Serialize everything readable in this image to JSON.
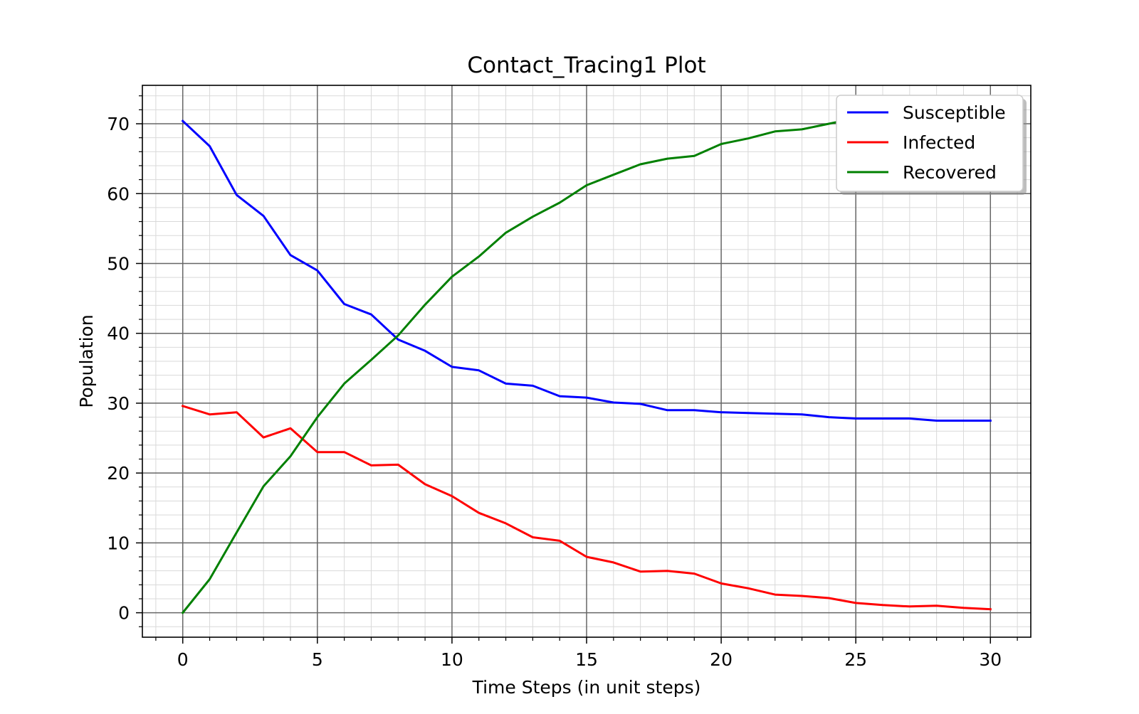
{
  "chart_data": {
    "type": "line",
    "title": "Contact_Tracing1 Plot",
    "xlabel": "Time Steps (in unit steps)",
    "ylabel": "Population",
    "xlim": [
      -1.5,
      31.5
    ],
    "ylim": [
      -3.5,
      75.5
    ],
    "xticks": [
      0,
      5,
      10,
      15,
      20,
      25,
      30
    ],
    "yticks": [
      0,
      10,
      20,
      30,
      40,
      50,
      60,
      70
    ],
    "grid": true,
    "minor_grid": true,
    "legend_position": "top-right",
    "x": [
      0,
      1,
      2,
      3,
      4,
      5,
      6,
      7,
      8,
      9,
      10,
      11,
      12,
      13,
      14,
      15,
      16,
      17,
      18,
      19,
      20,
      21,
      22,
      23,
      24,
      25,
      26,
      27,
      28,
      29,
      30
    ],
    "series": [
      {
        "name": "Susceptible",
        "color": "#0000ff",
        "values": [
          70.4,
          66.8,
          59.8,
          56.8,
          51.2,
          49.0,
          44.2,
          42.7,
          39.1,
          37.5,
          35.2,
          34.7,
          32.8,
          32.5,
          31.0,
          30.8,
          30.1,
          29.9,
          29.0,
          29.0,
          28.7,
          28.6,
          28.5,
          28.4,
          28.0,
          27.8,
          27.8,
          27.8,
          27.5,
          27.5,
          27.5
        ]
      },
      {
        "name": "Infected",
        "color": "#ff0000",
        "values": [
          29.6,
          28.4,
          28.7,
          25.1,
          26.4,
          23.0,
          23.0,
          21.1,
          21.2,
          18.4,
          16.7,
          14.3,
          12.8,
          10.8,
          10.3,
          8.0,
          7.2,
          5.9,
          6.0,
          5.6,
          4.2,
          3.5,
          2.6,
          2.4,
          2.1,
          1.4,
          1.1,
          0.9,
          1.0,
          0.7,
          0.5
        ]
      },
      {
        "name": "Recovered",
        "color": "#008000",
        "values": [
          0.0,
          4.8,
          11.5,
          18.1,
          22.4,
          28.0,
          32.8,
          36.2,
          39.7,
          44.1,
          48.1,
          51.0,
          54.4,
          56.7,
          58.7,
          61.2,
          62.7,
          64.2,
          65.0,
          65.4,
          67.1,
          67.9,
          68.9,
          69.2,
          70.0,
          70.8,
          71.1,
          71.3,
          71.5,
          71.8,
          72.0
        ]
      }
    ]
  }
}
